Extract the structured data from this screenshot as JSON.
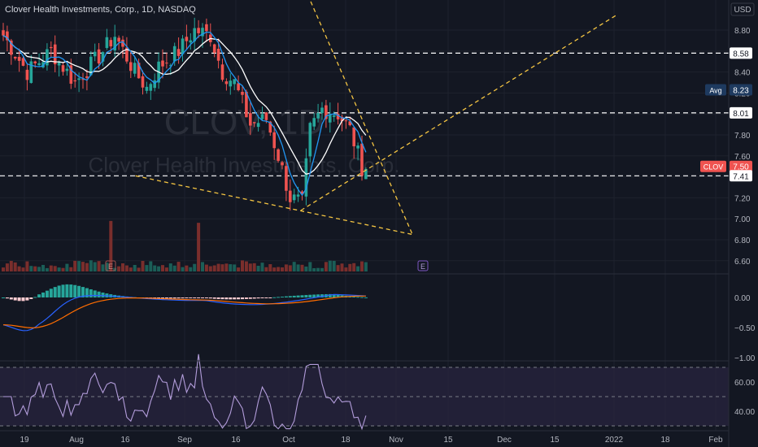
{
  "header": {
    "symbol_title": "Clover Health Investments, Corp., 1D, NASDAQ",
    "currency": "USD"
  },
  "watermark": {
    "symbol": "CLOV, 1D",
    "name": "Clover Health Investments, Corp."
  },
  "price_axis": {
    "ticks": [
      "8.80",
      "8.60",
      "8.40",
      "8.20",
      "8.00",
      "7.80",
      "7.60",
      "7.40",
      "7.20",
      "7.00",
      "6.80",
      "6.60"
    ]
  },
  "price_labels": [
    {
      "text": "8.58",
      "type": "line"
    },
    {
      "text": "8.23",
      "type": "avg",
      "tag": "Avg"
    },
    {
      "text": "8.01",
      "type": "line"
    },
    {
      "text": "7.50",
      "type": "last",
      "tag": "CLOV"
    },
    {
      "text": "7.41",
      "type": "line"
    }
  ],
  "horizontal_levels": [
    8.58,
    8.01,
    7.41
  ],
  "macd_axis": {
    "ticks": [
      "0.00",
      "−0.50",
      "−1.00"
    ]
  },
  "rsi_axis": {
    "ticks": [
      "60.00",
      "40.00"
    ]
  },
  "time_axis": {
    "ticks": [
      "19",
      "Aug",
      "16",
      "Sep",
      "16",
      "Oct",
      "18",
      "Nov",
      "15",
      "Dec",
      "15",
      "2022",
      "18",
      "Feb"
    ]
  },
  "earnings_marker": "E",
  "colors": {
    "up": "#26a69a",
    "down": "#ef5350",
    "white_ma": "#ffffff",
    "blue_ma": "#2196f3",
    "trendline": "#f5c542",
    "macd_line": "#2962ff",
    "signal_line": "#ff6d00",
    "rsi_line": "#b39ddb",
    "rsi_band": "#2a2540",
    "background": "#131722",
    "grid": "#1e222d"
  },
  "chart_data": {
    "type": "candlestick",
    "panes": [
      "price",
      "volume",
      "macd",
      "rsi"
    ],
    "ylim_price": [
      6.5,
      8.9
    ],
    "last_price": 7.5,
    "avg_price": 8.23,
    "ylim_macd": [
      -1.05,
      0.3
    ],
    "ylim_rsi": [
      20,
      80
    ],
    "rsi_levels": [
      70,
      50,
      30
    ],
    "x_dates": [
      "Jul 19",
      "Aug",
      "Aug 16",
      "Sep",
      "Sep 16",
      "Oct",
      "Oct 18",
      "Nov",
      "Nov 15",
      "Dec",
      "Dec 15",
      "2022",
      "Jan 18",
      "Feb"
    ],
    "trendlines": [
      {
        "name": "upper-wedge",
        "from": [
          7.65,
          9.2
        ],
        "to": [
          10.35,
          6.85
        ]
      },
      {
        "name": "lower-wedge",
        "from": [
          3.4,
          7.41
        ],
        "to": [
          10.35,
          6.85
        ]
      },
      {
        "name": "rising-line",
        "from": [
          7.55,
          7.08
        ],
        "to": [
          15.5,
          8.95
        ]
      }
    ]
  }
}
